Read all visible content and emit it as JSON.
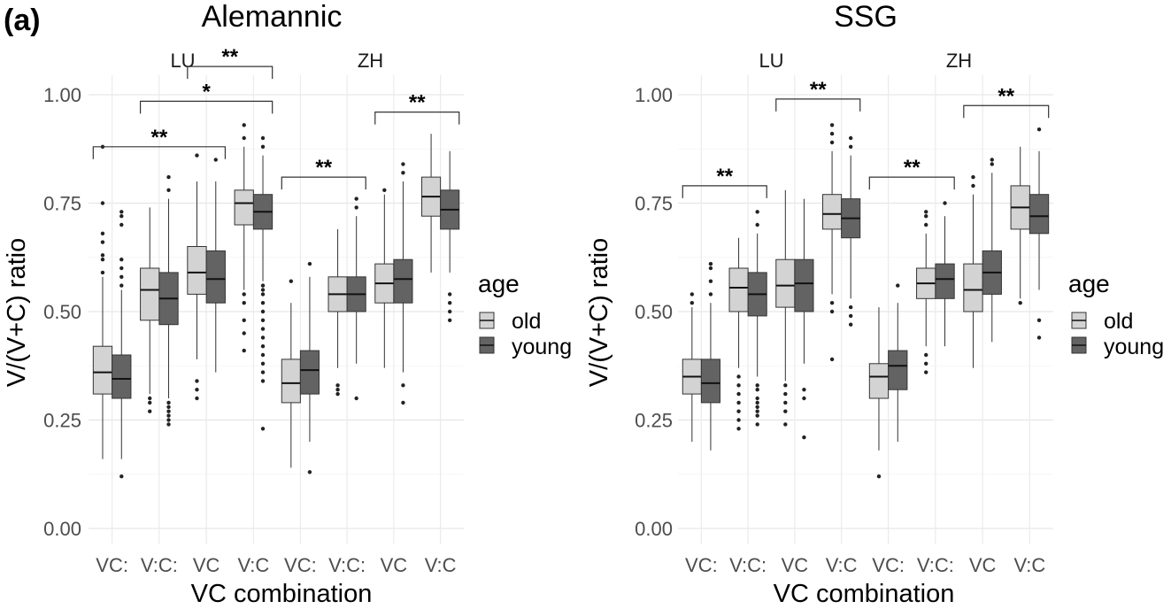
{
  "panel_label": "(a)",
  "chart_data": [
    {
      "type": "boxplot",
      "title": "Alemannic",
      "xlabel": "VC combination",
      "ylabel": "V/(V+C) ratio",
      "ylim": [
        0,
        1
      ],
      "yticks": [
        "0.00",
        "0.25",
        "0.50",
        "0.75",
        "1.00"
      ],
      "categories": [
        "VC:",
        "V:C:",
        "VC",
        "V:C"
      ],
      "facets": [
        {
          "name": "LU",
          "boxes": [
            {
              "category": "VC:",
              "group": "old",
              "min": 0.16,
              "q1": 0.31,
              "median": 0.36,
              "q3": 0.42,
              "max": 0.58,
              "outliers": [
                0.59,
                0.62,
                0.63,
                0.66,
                0.68,
                0.75,
                0.88
              ]
            },
            {
              "category": "VC:",
              "group": "young",
              "min": 0.16,
              "q1": 0.3,
              "median": 0.345,
              "q3": 0.4,
              "max": 0.55,
              "outliers": [
                0.12,
                0.56,
                0.58,
                0.6,
                0.62,
                0.7,
                0.72,
                0.73
              ]
            },
            {
              "category": "V:C:",
              "group": "old",
              "min": 0.31,
              "q1": 0.48,
              "median": 0.55,
              "q3": 0.6,
              "max": 0.74,
              "outliers": [
                0.27,
                0.29,
                0.3
              ]
            },
            {
              "category": "V:C:",
              "group": "young",
              "min": 0.3,
              "q1": 0.47,
              "median": 0.53,
              "q3": 0.59,
              "max": 0.76,
              "outliers": [
                0.24,
                0.25,
                0.26,
                0.27,
                0.28,
                0.29,
                0.78,
                0.81
              ]
            },
            {
              "category": "VC",
              "group": "old",
              "min": 0.39,
              "q1": 0.54,
              "median": 0.59,
              "q3": 0.65,
              "max": 0.8,
              "outliers": [
                0.3,
                0.32,
                0.34,
                0.86
              ]
            },
            {
              "category": "VC",
              "group": "young",
              "min": 0.36,
              "q1": 0.52,
              "median": 0.575,
              "q3": 0.64,
              "max": 0.8,
              "outliers": [
                0.85
              ]
            },
            {
              "category": "V:C",
              "group": "old",
              "min": 0.55,
              "q1": 0.7,
              "median": 0.75,
              "q3": 0.78,
              "max": 0.88,
              "outliers": [
                0.41,
                0.45,
                0.48,
                0.52,
                0.54,
                0.9,
                0.93
              ]
            },
            {
              "category": "V:C",
              "group": "young",
              "min": 0.57,
              "q1": 0.69,
              "median": 0.73,
              "q3": 0.77,
              "max": 0.86,
              "outliers": [
                0.23,
                0.34,
                0.36,
                0.38,
                0.4,
                0.42,
                0.44,
                0.46,
                0.48,
                0.5,
                0.52,
                0.54,
                0.55,
                0.56,
                0.88,
                0.9
              ]
            }
          ],
          "brackets": [
            {
              "from": "VC:",
              "to": "VC",
              "label": "**",
              "y": 0.88
            },
            {
              "from": "V:C:",
              "to": "V:C",
              "label": "*",
              "y": 0.985
            },
            {
              "from": "VC",
              "to": "V:C",
              "label": "**",
              "y": 1.065
            }
          ]
        },
        {
          "name": "ZH",
          "boxes": [
            {
              "category": "VC:",
              "group": "old",
              "min": 0.14,
              "q1": 0.29,
              "median": 0.335,
              "q3": 0.39,
              "max": 0.52,
              "outliers": [
                0.57
              ]
            },
            {
              "category": "VC:",
              "group": "young",
              "min": 0.2,
              "q1": 0.31,
              "median": 0.365,
              "q3": 0.41,
              "max": 0.58,
              "outliers": [
                0.13,
                0.61
              ]
            },
            {
              "category": "V:C:",
              "group": "old",
              "min": 0.37,
              "q1": 0.5,
              "median": 0.54,
              "q3": 0.58,
              "max": 0.69,
              "outliers": [
                0.31,
                0.32,
                0.33
              ]
            },
            {
              "category": "V:C:",
              "group": "young",
              "min": 0.38,
              "q1": 0.5,
              "median": 0.54,
              "q3": 0.58,
              "max": 0.72,
              "outliers": [
                0.3,
                0.74,
                0.76
              ]
            },
            {
              "category": "VC",
              "group": "old",
              "min": 0.37,
              "q1": 0.52,
              "median": 0.565,
              "q3": 0.61,
              "max": 0.77,
              "outliers": [
                0.78
              ]
            },
            {
              "category": "VC",
              "group": "young",
              "min": 0.36,
              "q1": 0.52,
              "median": 0.575,
              "q3": 0.62,
              "max": 0.8,
              "outliers": [
                0.29,
                0.33,
                0.82,
                0.84
              ]
            },
            {
              "category": "V:C",
              "group": "old",
              "min": 0.59,
              "q1": 0.72,
              "median": 0.765,
              "q3": 0.81,
              "max": 0.91,
              "outliers": []
            },
            {
              "category": "V:C",
              "group": "young",
              "min": 0.59,
              "q1": 0.69,
              "median": 0.735,
              "q3": 0.78,
              "max": 0.87,
              "outliers": [
                0.48,
                0.5,
                0.52,
                0.54
              ]
            }
          ],
          "brackets": [
            {
              "from": "VC:",
              "to": "V:C:",
              "label": "**",
              "y": 0.81
            },
            {
              "from": "VC",
              "to": "V:C",
              "label": "**",
              "y": 0.96
            }
          ]
        }
      ]
    },
    {
      "type": "boxplot",
      "title": "SSG",
      "xlabel": "VC combination",
      "ylabel": "V/(V+C) ratio",
      "ylim": [
        0,
        1
      ],
      "yticks": [
        "0.00",
        "0.25",
        "0.50",
        "0.75",
        "1.00"
      ],
      "categories": [
        "VC:",
        "V:C:",
        "VC",
        "V:C"
      ],
      "facets": [
        {
          "name": "LU",
          "boxes": [
            {
              "category": "VC:",
              "group": "old",
              "min": 0.2,
              "q1": 0.31,
              "median": 0.35,
              "q3": 0.39,
              "max": 0.51,
              "outliers": [
                0.52,
                0.54
              ]
            },
            {
              "category": "VC:",
              "group": "young",
              "min": 0.18,
              "q1": 0.29,
              "median": 0.335,
              "q3": 0.39,
              "max": 0.52,
              "outliers": [
                0.54,
                0.57,
                0.6,
                0.61
              ]
            },
            {
              "category": "V:C:",
              "group": "old",
              "min": 0.37,
              "q1": 0.5,
              "median": 0.555,
              "q3": 0.6,
              "max": 0.67,
              "outliers": [
                0.23,
                0.25,
                0.27,
                0.29,
                0.31,
                0.33,
                0.35
              ]
            },
            {
              "category": "V:C:",
              "group": "young",
              "min": 0.35,
              "q1": 0.49,
              "median": 0.54,
              "q3": 0.59,
              "max": 0.68,
              "outliers": [
                0.24,
                0.26,
                0.27,
                0.28,
                0.29,
                0.3,
                0.32,
                0.33,
                0.7,
                0.73
              ]
            },
            {
              "category": "VC",
              "group": "old",
              "min": 0.34,
              "q1": 0.51,
              "median": 0.56,
              "q3": 0.62,
              "max": 0.78,
              "outliers": [
                0.24,
                0.27,
                0.29,
                0.31,
                0.33
              ]
            },
            {
              "category": "VC",
              "group": "young",
              "min": 0.38,
              "q1": 0.5,
              "median": 0.565,
              "q3": 0.62,
              "max": 0.76,
              "outliers": [
                0.21,
                0.3,
                0.32
              ]
            },
            {
              "category": "V:C",
              "group": "old",
              "min": 0.54,
              "q1": 0.69,
              "median": 0.725,
              "q3": 0.77,
              "max": 0.87,
              "outliers": [
                0.39,
                0.5,
                0.52,
                0.89,
                0.91,
                0.93
              ]
            },
            {
              "category": "V:C",
              "group": "young",
              "min": 0.53,
              "q1": 0.67,
              "median": 0.715,
              "q3": 0.76,
              "max": 0.86,
              "outliers": [
                0.47,
                0.49,
                0.51,
                0.88,
                0.9
              ]
            }
          ],
          "brackets": [
            {
              "from": "VC:",
              "to": "V:C:",
              "label": "**",
              "y": 0.79
            },
            {
              "from": "VC",
              "to": "V:C",
              "label": "**",
              "y": 0.99
            }
          ]
        },
        {
          "name": "ZH",
          "boxes": [
            {
              "category": "VC:",
              "group": "old",
              "min": 0.18,
              "q1": 0.3,
              "median": 0.35,
              "q3": 0.38,
              "max": 0.51,
              "outliers": [
                0.12
              ]
            },
            {
              "category": "VC:",
              "group": "young",
              "min": 0.2,
              "q1": 0.32,
              "median": 0.375,
              "q3": 0.41,
              "max": 0.52,
              "outliers": [
                0.56
              ]
            },
            {
              "category": "V:C:",
              "group": "old",
              "min": 0.42,
              "q1": 0.53,
              "median": 0.565,
              "q3": 0.6,
              "max": 0.68,
              "outliers": [
                0.36,
                0.38,
                0.4,
                0.7,
                0.72,
                0.73
              ]
            },
            {
              "category": "V:C:",
              "group": "young",
              "min": 0.42,
              "q1": 0.53,
              "median": 0.575,
              "q3": 0.61,
              "max": 0.72,
              "outliers": [
                0.75
              ]
            },
            {
              "category": "VC",
              "group": "old",
              "min": 0.37,
              "q1": 0.5,
              "median": 0.55,
              "q3": 0.61,
              "max": 0.77,
              "outliers": [
                0.79,
                0.81
              ]
            },
            {
              "category": "VC",
              "group": "young",
              "min": 0.43,
              "q1": 0.54,
              "median": 0.59,
              "q3": 0.64,
              "max": 0.82,
              "outliers": [
                0.84,
                0.85
              ]
            },
            {
              "category": "V:C",
              "group": "old",
              "min": 0.53,
              "q1": 0.69,
              "median": 0.74,
              "q3": 0.79,
              "max": 0.88,
              "outliers": [
                0.52
              ]
            },
            {
              "category": "V:C",
              "group": "young",
              "min": 0.55,
              "q1": 0.68,
              "median": 0.72,
              "q3": 0.77,
              "max": 0.87,
              "outliers": [
                0.44,
                0.48,
                0.92
              ]
            }
          ],
          "brackets": [
            {
              "from": "VC:",
              "to": "V:C:",
              "label": "**",
              "y": 0.81
            },
            {
              "from": "VC",
              "to": "V:C",
              "label": "**",
              "y": 0.975
            }
          ]
        }
      ]
    }
  ],
  "legend": {
    "title": "age",
    "items": [
      {
        "label": "old",
        "color": "#d3d3d3"
      },
      {
        "label": "young",
        "color": "#636363"
      }
    ]
  }
}
